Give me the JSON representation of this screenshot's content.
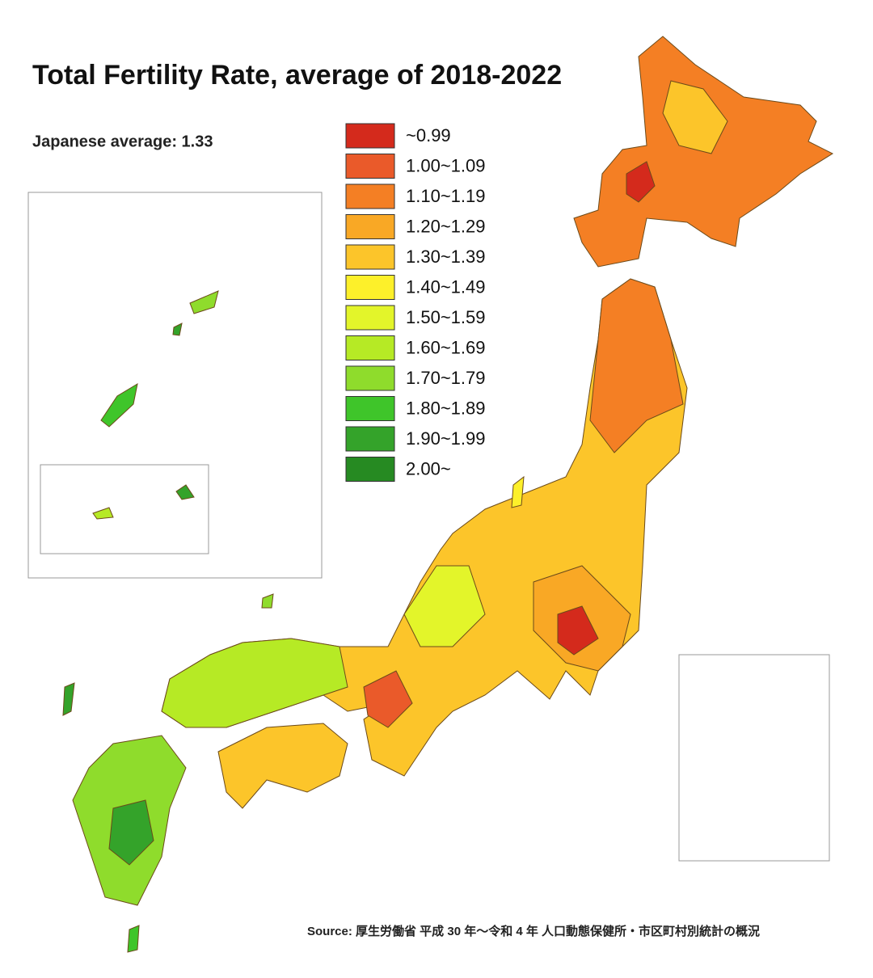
{
  "header": {
    "title": "Total Fertility Rate, average of 2018-2022",
    "subtitle": "Japanese average: 1.33"
  },
  "legend": {
    "items": [
      {
        "label": "~0.99",
        "color": "#d42a1c"
      },
      {
        "label": "1.00~1.09",
        "color": "#ea5a2a"
      },
      {
        "label": "1.10~1.19",
        "color": "#f47f24"
      },
      {
        "label": "1.20~1.29",
        "color": "#f9a825"
      },
      {
        "label": "1.30~1.39",
        "color": "#fcc52a"
      },
      {
        "label": "1.40~1.49",
        "color": "#fdf02a"
      },
      {
        "label": "1.50~1.59",
        "color": "#e3f52a"
      },
      {
        "label": "1.60~1.69",
        "color": "#b6ea25"
      },
      {
        "label": "1.70~1.79",
        "color": "#8fdc2c"
      },
      {
        "label": "1.80~1.89",
        "color": "#3fc52a"
      },
      {
        "label": "1.90~1.99",
        "color": "#34a32a"
      },
      {
        "label": "2.00~",
        "color": "#268a22"
      }
    ]
  },
  "footer": {
    "source": "Source: 厚生労働省 平成 30 年～令和 4 年 人口動態保健所・市区町村別統計の概況"
  }
}
